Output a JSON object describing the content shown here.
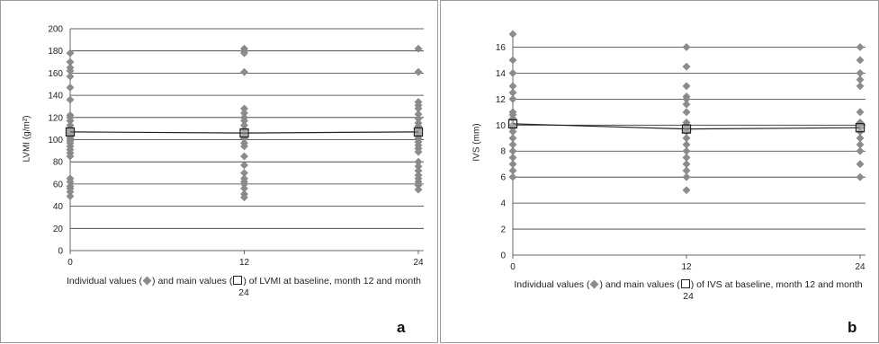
{
  "chart_data": [
    {
      "type": "scatter",
      "panel_letter": "a",
      "ylabel": "LVMI (g/m²)",
      "caption": {
        "before_diamond": "Individual values (",
        "between": ") and main values (",
        "after_square": ") of LVMI at baseline, month 12 and month 24"
      },
      "x_ticks": [
        "0",
        "12",
        "24"
      ],
      "x_values": [
        0,
        12,
        24
      ],
      "ylim": [
        0,
        200
      ],
      "y_ticks": [
        0,
        20,
        40,
        60,
        80,
        100,
        120,
        140,
        160,
        180,
        200
      ],
      "grid": true,
      "colors": {
        "individual": "#8c8c8c",
        "mean": "#222222",
        "grid": "#333333"
      },
      "individual_values": [
        {
          "x": 0,
          "values": [
            178,
            170,
            165,
            162,
            157,
            147,
            136,
            122,
            120,
            117,
            113,
            110,
            108,
            106,
            104,
            103,
            101,
            99,
            97,
            94,
            91,
            88,
            85,
            65,
            62,
            58,
            56,
            53,
            49
          ]
        },
        {
          "x": 12,
          "values": [
            182,
            180,
            178,
            161,
            128,
            124,
            120,
            117,
            113,
            109,
            106,
            103,
            101,
            97,
            94,
            85,
            77,
            70,
            65,
            62,
            60,
            56,
            51,
            48
          ]
        },
        {
          "x": 24,
          "values": [
            182,
            161,
            134,
            131,
            128,
            123,
            119,
            115,
            112,
            109,
            106,
            103,
            101,
            98,
            95,
            92,
            89,
            80,
            76,
            72,
            68,
            65,
            62,
            59,
            55
          ]
        }
      ],
      "mean_values": [
        107,
        106,
        107
      ]
    },
    {
      "type": "scatter",
      "panel_letter": "b",
      "ylabel": "IVS (mm)",
      "caption": {
        "before_diamond": "Individual values (",
        "between": ") and main values (",
        "after_square": ") of IVS at baseline, month 12 and month 24"
      },
      "x_ticks": [
        "0",
        "12",
        "24"
      ],
      "x_values": [
        0,
        12,
        24
      ],
      "ylim": [
        0,
        17
      ],
      "y_ticks": [
        0,
        2,
        4,
        6,
        8,
        10,
        12,
        14,
        16
      ],
      "grid": true,
      "colors": {
        "individual": "#8c8c8c",
        "mean": "#222222",
        "grid": "#333333"
      },
      "individual_values": [
        {
          "x": 0,
          "values": [
            17,
            15,
            14,
            13,
            12.5,
            12,
            11,
            10.8,
            10.5,
            10,
            9.8,
            9.5,
            9,
            8.5,
            8,
            7.5,
            7,
            6.5,
            6
          ]
        },
        {
          "x": 12,
          "values": [
            16,
            14.5,
            13,
            12.2,
            12,
            11.6,
            11,
            10.2,
            10,
            9.8,
            9.5,
            9,
            8.5,
            8,
            7.5,
            7,
            6.5,
            6,
            5
          ]
        },
        {
          "x": 24,
          "values": [
            16,
            15,
            14,
            13.5,
            13,
            11,
            10.2,
            10,
            9.8,
            9.5,
            9,
            8.5,
            8,
            7,
            6
          ]
        }
      ],
      "mean_values": [
        10.1,
        9.7,
        9.8
      ]
    }
  ]
}
